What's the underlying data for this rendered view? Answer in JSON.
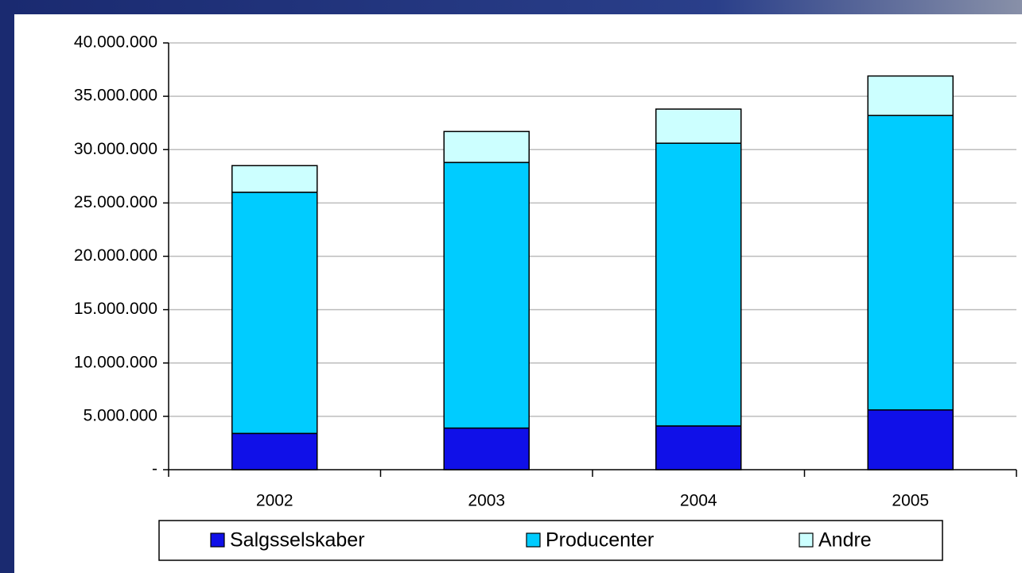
{
  "chart_data": {
    "type": "bar",
    "stacked": true,
    "categories": [
      "2002",
      "2003",
      "2004",
      "2005"
    ],
    "series": [
      {
        "name": "Salgsselskaber",
        "color": "#1010e8",
        "values": [
          3400000,
          3900000,
          4100000,
          5600000
        ]
      },
      {
        "name": "Producenter",
        "color": "#00ccff",
        "values": [
          22600000,
          24900000,
          26500000,
          27600000
        ]
      },
      {
        "name": "Andre",
        "color": "#ccffff",
        "values": [
          2500000,
          2900000,
          3200000,
          3700000
        ]
      }
    ],
    "ylim": [
      0,
      40000000
    ],
    "yticks": [
      {
        "value": 0,
        "label": "-"
      },
      {
        "value": 5000000,
        "label": "5.000.000"
      },
      {
        "value": 10000000,
        "label": "10.000.000"
      },
      {
        "value": 15000000,
        "label": "15.000.000"
      },
      {
        "value": 20000000,
        "label": "20.000.000"
      },
      {
        "value": 25000000,
        "label": "25.000.000"
      },
      {
        "value": 30000000,
        "label": "30.000.000"
      },
      {
        "value": 35000000,
        "label": "35.000.000"
      },
      {
        "value": 40000000,
        "label": "40.000.000"
      }
    ],
    "grid": true,
    "legend": "bottom"
  }
}
